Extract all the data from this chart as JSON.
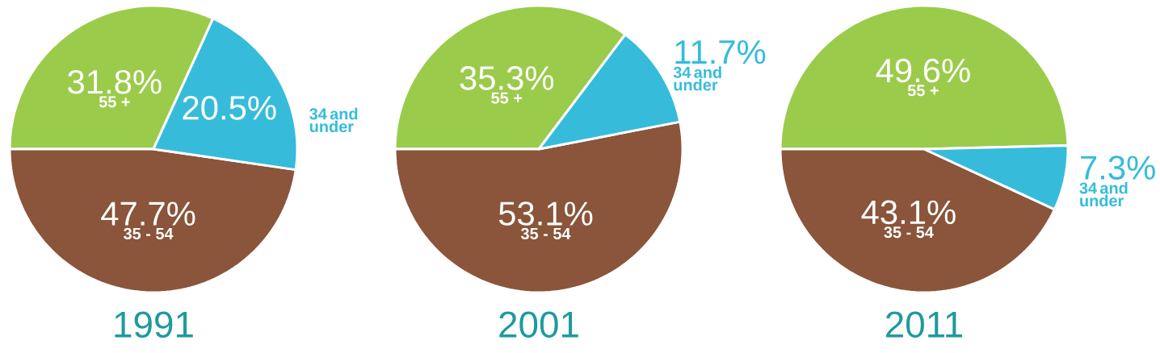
{
  "chart_data": [
    {
      "type": "pie",
      "title": "1991",
      "categories": [
        "55 +",
        "35 - 54",
        "34 and under"
      ],
      "values": [
        31.8,
        47.7,
        20.5
      ],
      "value_labels": [
        "31.8%",
        "47.7%",
        "20.5%"
      ],
      "colors": [
        "#9bcb4b",
        "#8a553a",
        "#36bcda"
      ]
    },
    {
      "type": "pie",
      "title": "2001",
      "categories": [
        "55 +",
        "35 - 54",
        "34 and under"
      ],
      "values": [
        35.3,
        53.1,
        11.7
      ],
      "value_labels": [
        "35.3%",
        "53.1%",
        "11.7%"
      ],
      "colors": [
        "#9bcb4b",
        "#8a553a",
        "#36bcda"
      ]
    },
    {
      "type": "pie",
      "title": "2011",
      "categories": [
        "55 +",
        "35 - 54",
        "34 and under"
      ],
      "values": [
        49.6,
        43.1,
        7.3
      ],
      "value_labels": [
        "49.6%",
        "43.1%",
        "7.3%"
      ],
      "colors": [
        "#9bcb4b",
        "#8a553a",
        "#36bcda"
      ]
    }
  ]
}
